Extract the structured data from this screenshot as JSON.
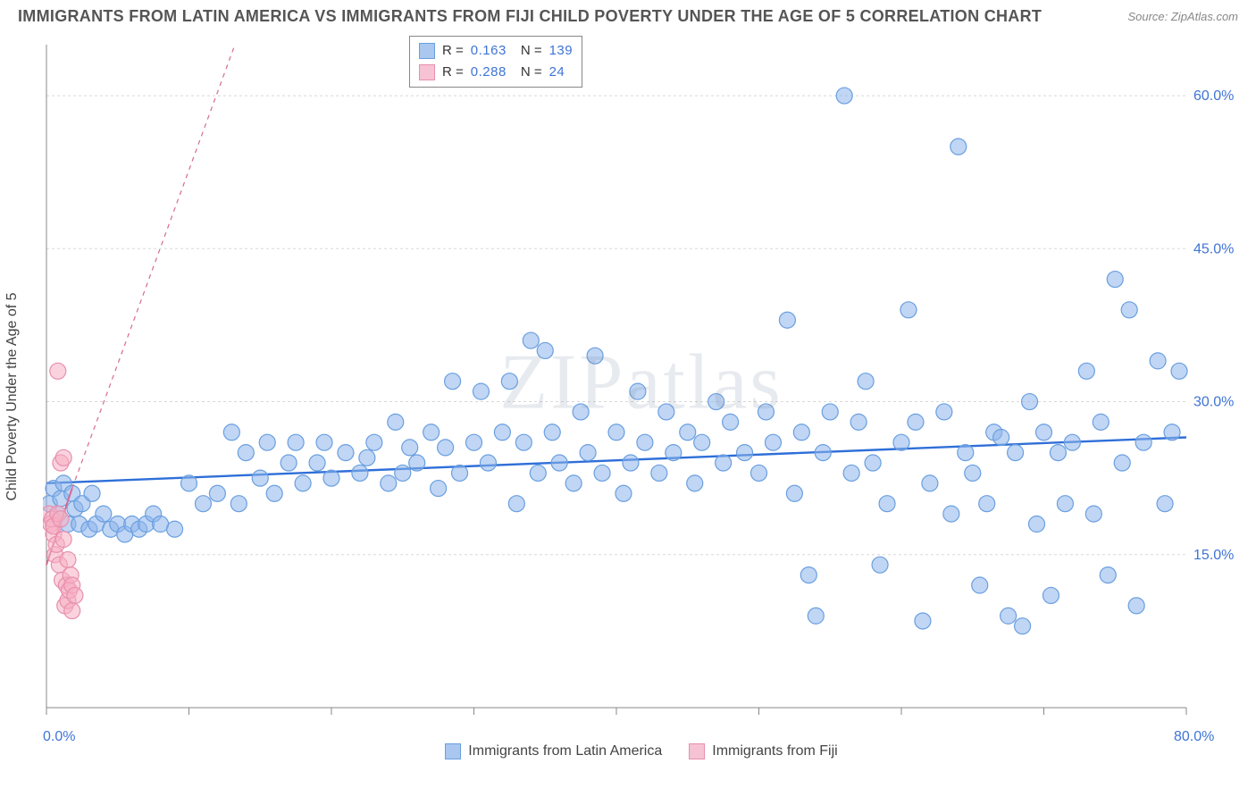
{
  "title": "IMMIGRANTS FROM LATIN AMERICA VS IMMIGRANTS FROM FIJI CHILD POVERTY UNDER THE AGE OF 5 CORRELATION CHART",
  "source": "Source: ZipAtlas.com",
  "watermark": "ZIPatlas",
  "y_axis_label": "Child Poverty Under the Age of 5",
  "chart": {
    "type": "scatter",
    "xlim": [
      0,
      80
    ],
    "ylim": [
      0,
      65
    ],
    "x_ticks": [
      0,
      10,
      20,
      30,
      40,
      50,
      60,
      70,
      80
    ],
    "x_tick_labels_shown": {
      "0": "0.0%",
      "80": "80.0%"
    },
    "y_gridlines": [
      15,
      30,
      45,
      60
    ],
    "y_tick_labels": {
      "15": "15.0%",
      "30": "30.0%",
      "45": "45.0%",
      "60": "60.0%"
    },
    "grid_color": "#d8d8d8",
    "axis_color": "#888888",
    "background_color": "#ffffff",
    "marker_radius": 9,
    "marker_stroke_width": 1.2,
    "series": [
      {
        "name": "Immigrants from Latin America",
        "fill": "rgba(140,180,235,0.55)",
        "stroke": "#6a9fe0",
        "swatch_fill": "#aac7ef",
        "swatch_stroke": "#6a9fe0",
        "R": "0.163",
        "N": "139",
        "trend": {
          "x1": 0,
          "y1": 22,
          "x2": 80,
          "y2": 26.5,
          "color": "#2f6fd8",
          "width": 2.4,
          "dash": "none",
          "extend": false
        },
        "points": [
          [
            0.2,
            20
          ],
          [
            0.5,
            21.5
          ],
          [
            0.8,
            19
          ],
          [
            1,
            20.5
          ],
          [
            1.2,
            22
          ],
          [
            1.5,
            18
          ],
          [
            1.8,
            21
          ],
          [
            2,
            19.5
          ],
          [
            2.3,
            18
          ],
          [
            2.5,
            20
          ],
          [
            3,
            17.5
          ],
          [
            3.2,
            21
          ],
          [
            3.5,
            18
          ],
          [
            4,
            19
          ],
          [
            4.5,
            17.5
          ],
          [
            5,
            18
          ],
          [
            5.5,
            17
          ],
          [
            6,
            18
          ],
          [
            6.5,
            17.5
          ],
          [
            7,
            18
          ],
          [
            7.5,
            19
          ],
          [
            8,
            18
          ],
          [
            9,
            17.5
          ],
          [
            10,
            22
          ],
          [
            11,
            20
          ],
          [
            12,
            21
          ],
          [
            13,
            27
          ],
          [
            13.5,
            20
          ],
          [
            14,
            25
          ],
          [
            15,
            22.5
          ],
          [
            15.5,
            26
          ],
          [
            16,
            21
          ],
          [
            17,
            24
          ],
          [
            17.5,
            26
          ],
          [
            18,
            22
          ],
          [
            19,
            24
          ],
          [
            19.5,
            26
          ],
          [
            20,
            22.5
          ],
          [
            21,
            25
          ],
          [
            22,
            23
          ],
          [
            22.5,
            24.5
          ],
          [
            23,
            26
          ],
          [
            24,
            22
          ],
          [
            24.5,
            28
          ],
          [
            25,
            23
          ],
          [
            25.5,
            25.5
          ],
          [
            26,
            24
          ],
          [
            27,
            27
          ],
          [
            27.5,
            21.5
          ],
          [
            28,
            25.5
          ],
          [
            28.5,
            32
          ],
          [
            29,
            23
          ],
          [
            30,
            26
          ],
          [
            30.5,
            31
          ],
          [
            31,
            24
          ],
          [
            32,
            27
          ],
          [
            32.5,
            32
          ],
          [
            33,
            20
          ],
          [
            33.5,
            26
          ],
          [
            34,
            36
          ],
          [
            34.5,
            23
          ],
          [
            35,
            35
          ],
          [
            35.5,
            27
          ],
          [
            36,
            24
          ],
          [
            37,
            22
          ],
          [
            37.5,
            29
          ],
          [
            38,
            25
          ],
          [
            38.5,
            34.5
          ],
          [
            39,
            23
          ],
          [
            40,
            27
          ],
          [
            40.5,
            21
          ],
          [
            41,
            24
          ],
          [
            41.5,
            31
          ],
          [
            42,
            26
          ],
          [
            43,
            23
          ],
          [
            43.5,
            29
          ],
          [
            44,
            25
          ],
          [
            45,
            27
          ],
          [
            45.5,
            22
          ],
          [
            46,
            26
          ],
          [
            47,
            30
          ],
          [
            47.5,
            24
          ],
          [
            48,
            28
          ],
          [
            49,
            25
          ],
          [
            50,
            23
          ],
          [
            50.5,
            29
          ],
          [
            51,
            26
          ],
          [
            52,
            38
          ],
          [
            52.5,
            21
          ],
          [
            53,
            27
          ],
          [
            53.5,
            13
          ],
          [
            54,
            9
          ],
          [
            54.5,
            25
          ],
          [
            55,
            29
          ],
          [
            56,
            60
          ],
          [
            56.5,
            23
          ],
          [
            57,
            28
          ],
          [
            57.5,
            32
          ],
          [
            58,
            24
          ],
          [
            58.5,
            14
          ],
          [
            59,
            20
          ],
          [
            60,
            26
          ],
          [
            60.5,
            39
          ],
          [
            61,
            28
          ],
          [
            61.5,
            8.5
          ],
          [
            62,
            22
          ],
          [
            63,
            29
          ],
          [
            63.5,
            19
          ],
          [
            64,
            55
          ],
          [
            64.5,
            25
          ],
          [
            65,
            23
          ],
          [
            65.5,
            12
          ],
          [
            66,
            20
          ],
          [
            66.5,
            27
          ],
          [
            67,
            26.5
          ],
          [
            67.5,
            9
          ],
          [
            68,
            25
          ],
          [
            68.5,
            8
          ],
          [
            69,
            30
          ],
          [
            69.5,
            18
          ],
          [
            70,
            27
          ],
          [
            70.5,
            11
          ],
          [
            71,
            25
          ],
          [
            71.5,
            20
          ],
          [
            72,
            26
          ],
          [
            73,
            33
          ],
          [
            73.5,
            19
          ],
          [
            74,
            28
          ],
          [
            74.5,
            13
          ],
          [
            75,
            42
          ],
          [
            75.5,
            24
          ],
          [
            76,
            39
          ],
          [
            76.5,
            10
          ],
          [
            77,
            26
          ],
          [
            78,
            34
          ],
          [
            78.5,
            20
          ],
          [
            79,
            27
          ],
          [
            79.5,
            33
          ]
        ]
      },
      {
        "name": "Immigrants from Fiji",
        "fill": "rgba(245,175,195,0.55)",
        "stroke": "#e78fae",
        "swatch_fill": "#f6c3d4",
        "swatch_stroke": "#e78fae",
        "R": "0.288",
        "N": "24",
        "trend": {
          "x1": 0,
          "y1": 14,
          "x2": 1.8,
          "y2": 21.5,
          "color": "#d66a94",
          "width": 2,
          "dash": "5,5",
          "extend": true,
          "extend_x2": 24,
          "extend_y2": 106
        },
        "points": [
          [
            0.2,
            19
          ],
          [
            0.3,
            18
          ],
          [
            0.4,
            18.5
          ],
          [
            0.5,
            17
          ],
          [
            0.5,
            17.8
          ],
          [
            0.6,
            15
          ],
          [
            0.7,
            16
          ],
          [
            0.8,
            19
          ],
          [
            0.9,
            14
          ],
          [
            1,
            18.5
          ],
          [
            1,
            24
          ],
          [
            1.1,
            12.5
          ],
          [
            1.2,
            16.5
          ],
          [
            1.2,
            24.5
          ],
          [
            0.8,
            33
          ],
          [
            1.3,
            10
          ],
          [
            1.4,
            12
          ],
          [
            1.5,
            10.5
          ],
          [
            1.5,
            14.5
          ],
          [
            1.6,
            11.5
          ],
          [
            1.7,
            13
          ],
          [
            1.8,
            12
          ],
          [
            1.8,
            9.5
          ],
          [
            2,
            11
          ]
        ]
      }
    ]
  },
  "legend_top_labels": {
    "R": "R =",
    "N": "N ="
  },
  "legend_bottom": [
    "Immigrants from Latin America",
    "Immigrants from Fiji"
  ]
}
